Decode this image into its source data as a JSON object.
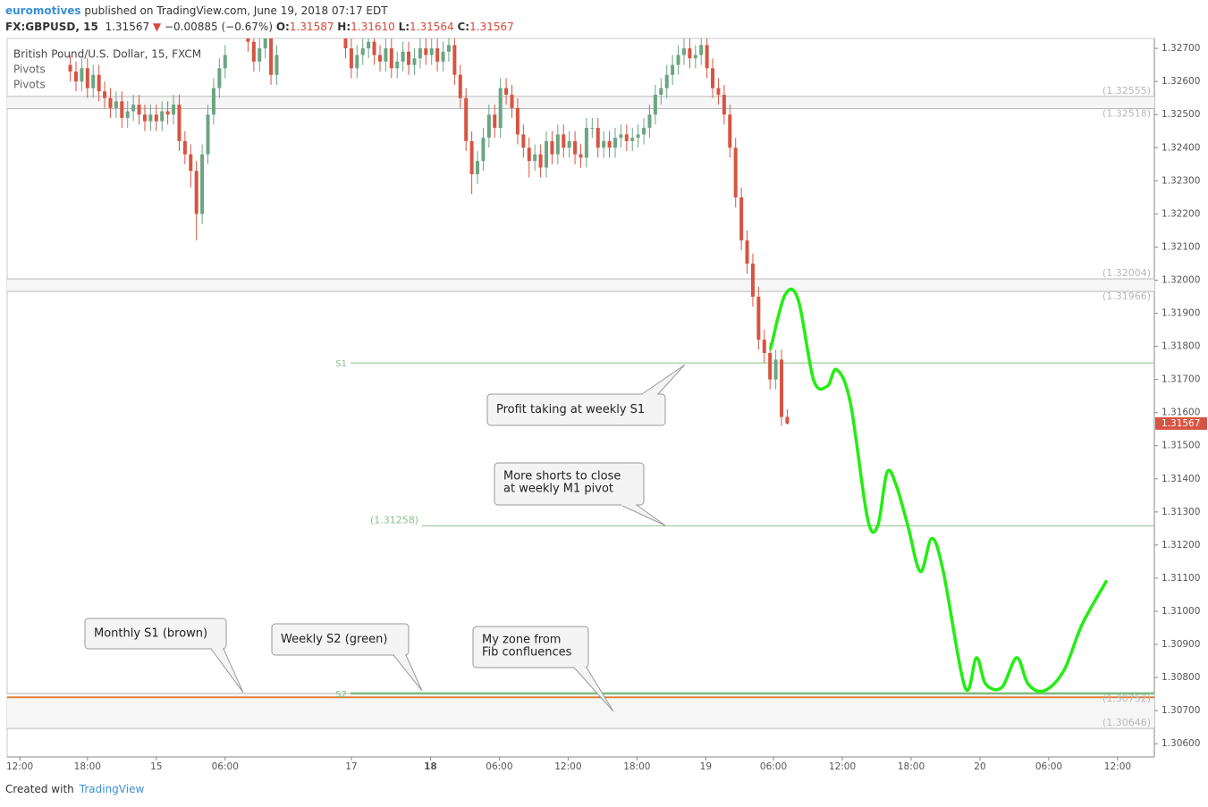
{
  "header": {
    "author": "euromotives",
    "published": "published on TradingView.com, June 19, 2018 07:17 EDT",
    "symbol": "FX:GBPUSD, 15",
    "price": "1.31567",
    "change": "−0.00885 (−0.67%)",
    "ohlc": [
      [
        "O:",
        "1.31587"
      ],
      [
        "H:",
        "1.31610"
      ],
      [
        "L:",
        "1.31564"
      ],
      [
        "C:",
        "1.31567"
      ]
    ]
  },
  "chart_data": {
    "type": "candlestick",
    "instrument": "British Pound/U.S. Dollar, 15, FXCM",
    "indicators": [
      "Pivots",
      "Pivots"
    ],
    "xlim": [
      0,
      100
    ],
    "ylim": [
      1.3056,
      1.3273
    ],
    "xticks": [
      {
        "value": 1.1,
        "label": "12:00"
      },
      {
        "value": 7,
        "label": "18:00"
      },
      {
        "value": 13,
        "label": "15"
      },
      {
        "value": 19,
        "label": "06:00"
      },
      {
        "value": 30,
        "label": "17"
      },
      {
        "value": 36.9,
        "label": "18"
      },
      {
        "value": 42.9,
        "label": "06:00"
      },
      {
        "value": 48.9,
        "label": "12:00"
      },
      {
        "value": 54.9,
        "label": "18:00"
      },
      {
        "value": 60.9,
        "label": "19"
      },
      {
        "value": 66.8,
        "label": "06:00"
      },
      {
        "value": 72.8,
        "label": "12:00"
      },
      {
        "value": 78.8,
        "label": "18:00"
      },
      {
        "value": 84.8,
        "label": "20"
      },
      {
        "value": 90.8,
        "label": "06:00"
      },
      {
        "value": 96.8,
        "label": "12:00"
      }
    ],
    "yticks": [
      {
        "value": 1.327,
        "label": "1.32700"
      },
      {
        "value": 1.326,
        "label": "1.32600"
      },
      {
        "value": 1.325,
        "label": "1.32500"
      },
      {
        "value": 1.324,
        "label": "1.32400"
      },
      {
        "value": 1.323,
        "label": "1.32300"
      },
      {
        "value": 1.322,
        "label": "1.32200"
      },
      {
        "value": 1.321,
        "label": "1.32100"
      },
      {
        "value": 1.32,
        "label": "1.32000"
      },
      {
        "value": 1.319,
        "label": "1.31900"
      },
      {
        "value": 1.318,
        "label": "1.31800"
      },
      {
        "value": 1.317,
        "label": "1.31700"
      },
      {
        "value": 1.316,
        "label": "1.31600"
      },
      {
        "value": 1.315,
        "label": "1.31500"
      },
      {
        "value": 1.314,
        "label": "1.31400"
      },
      {
        "value": 1.313,
        "label": "1.31300"
      },
      {
        "value": 1.312,
        "label": "1.31200"
      },
      {
        "value": 1.311,
        "label": "1.31100"
      },
      {
        "value": 1.31,
        "label": "1.31000"
      },
      {
        "value": 1.309,
        "label": "1.30900"
      },
      {
        "value": 1.308,
        "label": "1.30800"
      },
      {
        "value": 1.307,
        "label": "1.30700"
      },
      {
        "value": 1.306,
        "label": "1.30600"
      }
    ],
    "series": [
      {
        "up_color": "#6ba583",
        "down_color": "#d75442",
        "x": [
          5.5,
          6,
          6.5,
          7,
          7.5,
          8,
          8.5,
          9,
          9.5,
          10,
          10.5,
          11,
          11.5,
          12,
          12.5,
          13,
          13.5,
          14,
          14.5,
          15,
          15.5,
          16,
          16.5,
          17,
          17.5,
          18,
          18.5,
          19,
          21,
          21.5,
          22,
          22.5,
          23,
          23.5,
          29.5,
          30,
          30.5,
          31,
          31.5,
          32,
          32.5,
          33,
          33.5,
          34,
          34.5,
          35,
          35.5,
          36,
          36.5,
          37,
          37.5,
          38,
          38.5,
          39,
          39.5,
          40,
          40.5,
          41,
          41.5,
          42,
          42.5,
          43,
          43.5,
          44,
          44.5,
          45,
          45.5,
          46,
          46.5,
          47,
          47.5,
          48,
          48.5,
          49,
          49.5,
          50,
          50.5,
          51,
          51.5,
          52,
          52.5,
          53,
          53.5,
          54,
          54.5,
          55,
          55.5,
          56,
          56.5,
          57,
          57.5,
          58,
          58.5,
          59,
          59.5,
          60,
          60.5,
          61,
          61.5,
          62,
          62.5,
          63,
          63.5,
          64,
          64.5,
          65,
          65.5,
          66,
          66.5,
          67,
          67.5,
          68
        ],
        "open": [
          1.3265,
          1.3263,
          1.326,
          1.3264,
          1.3258,
          1.3262,
          1.3257,
          1.3255,
          1.3252,
          1.3254,
          1.3249,
          1.3251,
          1.3253,
          1.325,
          1.3248,
          1.325,
          1.3248,
          1.3251,
          1.325,
          1.3253,
          1.3242,
          1.3238,
          1.3233,
          1.322,
          1.3238,
          1.325,
          1.3258,
          1.3264,
          1.3276,
          1.3272,
          1.3266,
          1.327,
          1.3274,
          1.3262,
          1.3274,
          1.327,
          1.3264,
          1.3268,
          1.327,
          1.3272,
          1.3268,
          1.3266,
          1.327,
          1.3264,
          1.3266,
          1.3269,
          1.3265,
          1.3267,
          1.327,
          1.3268,
          1.327,
          1.3266,
          1.3269,
          1.3271,
          1.3262,
          1.3255,
          1.3242,
          1.3232,
          1.3236,
          1.3243,
          1.325,
          1.3246,
          1.3258,
          1.3256,
          1.3252,
          1.3244,
          1.324,
          1.3236,
          1.3238,
          1.3234,
          1.3242,
          1.3238,
          1.3244,
          1.324,
          1.3242,
          1.3238,
          1.3237,
          1.3246,
          1.3246,
          1.324,
          1.3242,
          1.324,
          1.3243,
          1.3244,
          1.3242,
          1.3243,
          1.3244,
          1.3246,
          1.325,
          1.3256,
          1.3258,
          1.3262,
          1.3265,
          1.3268,
          1.327,
          1.3267,
          1.3268,
          1.3271,
          1.3264,
          1.3258,
          1.3256,
          1.325,
          1.324,
          1.3225,
          1.3212,
          1.3205,
          1.3195,
          1.3182,
          1.3178,
          1.317,
          1.3176,
          1.31587
        ],
        "high": [
          1.3268,
          1.3266,
          1.3267,
          1.3267,
          1.3265,
          1.3265,
          1.326,
          1.3258,
          1.3257,
          1.3257,
          1.3254,
          1.3256,
          1.3256,
          1.3253,
          1.3253,
          1.3253,
          1.3254,
          1.3254,
          1.3256,
          1.3256,
          1.3245,
          1.3241,
          1.3236,
          1.3241,
          1.3253,
          1.3261,
          1.3267,
          1.3271,
          1.3279,
          1.3275,
          1.3273,
          1.3277,
          1.3277,
          1.3271,
          1.3277,
          1.3273,
          1.3271,
          1.3273,
          1.3275,
          1.3275,
          1.3271,
          1.3273,
          1.3273,
          1.3269,
          1.3272,
          1.3272,
          1.327,
          1.3273,
          1.3273,
          1.3273,
          1.3273,
          1.3272,
          1.3274,
          1.3274,
          1.3265,
          1.3258,
          1.3245,
          1.3239,
          1.3246,
          1.3253,
          1.3253,
          1.3261,
          1.3261,
          1.3259,
          1.3255,
          1.3247,
          1.3243,
          1.3241,
          1.3241,
          1.3245,
          1.3245,
          1.3247,
          1.3247,
          1.3245,
          1.3245,
          1.3241,
          1.3249,
          1.3249,
          1.3249,
          1.3245,
          1.3245,
          1.3246,
          1.3247,
          1.3247,
          1.3246,
          1.3247,
          1.3249,
          1.3253,
          1.3259,
          1.3261,
          1.3265,
          1.3268,
          1.3271,
          1.3273,
          1.3273,
          1.3271,
          1.3274,
          1.3274,
          1.3267,
          1.3261,
          1.3259,
          1.3253,
          1.3243,
          1.3228,
          1.3215,
          1.3208,
          1.3198,
          1.3185,
          1.3181,
          1.3179,
          1.3179,
          1.3161
        ],
        "low": [
          1.326,
          1.3257,
          1.3257,
          1.3255,
          1.3255,
          1.3254,
          1.3252,
          1.3249,
          1.3249,
          1.3246,
          1.3246,
          1.3248,
          1.3247,
          1.3245,
          1.3245,
          1.3245,
          1.3245,
          1.3247,
          1.3247,
          1.3239,
          1.3235,
          1.3228,
          1.3212,
          1.3217,
          1.3235,
          1.3247,
          1.3255,
          1.3261,
          1.3269,
          1.3263,
          1.3263,
          1.3267,
          1.3259,
          1.3259,
          1.3267,
          1.3261,
          1.3261,
          1.3265,
          1.3267,
          1.3265,
          1.3263,
          1.3263,
          1.3261,
          1.3261,
          1.3263,
          1.3262,
          1.3262,
          1.3264,
          1.3265,
          1.3265,
          1.3263,
          1.3263,
          1.3266,
          1.3259,
          1.3252,
          1.3239,
          1.3226,
          1.3229,
          1.3233,
          1.324,
          1.3243,
          1.3243,
          1.3253,
          1.3249,
          1.3241,
          1.3237,
          1.3231,
          1.3233,
          1.3231,
          1.3231,
          1.3235,
          1.3235,
          1.3237,
          1.3237,
          1.3235,
          1.3234,
          1.3234,
          1.3243,
          1.3237,
          1.3237,
          1.3237,
          1.3237,
          1.324,
          1.3239,
          1.3239,
          1.324,
          1.3241,
          1.3243,
          1.3247,
          1.3253,
          1.3255,
          1.3259,
          1.3262,
          1.3265,
          1.3264,
          1.3264,
          1.3265,
          1.3261,
          1.3255,
          1.3253,
          1.3247,
          1.3237,
          1.3222,
          1.3209,
          1.3202,
          1.3192,
          1.3179,
          1.3175,
          1.3167,
          1.3167,
          1.3156,
          1.31564
        ],
        "close": [
          1.3263,
          1.326,
          1.3264,
          1.3258,
          1.3262,
          1.3257,
          1.3255,
          1.3252,
          1.3254,
          1.3249,
          1.3251,
          1.3253,
          1.325,
          1.3248,
          1.325,
          1.3248,
          1.3251,
          1.325,
          1.3253,
          1.3242,
          1.3238,
          1.3233,
          1.322,
          1.3238,
          1.325,
          1.3258,
          1.3264,
          1.3268,
          1.3272,
          1.3266,
          1.327,
          1.3274,
          1.3262,
          1.3268,
          1.327,
          1.3264,
          1.3268,
          1.327,
          1.3272,
          1.3268,
          1.3266,
          1.327,
          1.3264,
          1.3266,
          1.3269,
          1.3265,
          1.3267,
          1.327,
          1.3268,
          1.327,
          1.3266,
          1.3269,
          1.3271,
          1.3262,
          1.3255,
          1.3242,
          1.3232,
          1.3236,
          1.3243,
          1.325,
          1.3246,
          1.3258,
          1.3256,
          1.3252,
          1.3244,
          1.324,
          1.3236,
          1.3238,
          1.3234,
          1.3242,
          1.3238,
          1.3244,
          1.324,
          1.3242,
          1.3238,
          1.3237,
          1.3246,
          1.3246,
          1.324,
          1.3242,
          1.324,
          1.3243,
          1.3244,
          1.3242,
          1.3243,
          1.3244,
          1.3246,
          1.325,
          1.3256,
          1.3258,
          1.3262,
          1.3265,
          1.3268,
          1.327,
          1.3267,
          1.3268,
          1.3271,
          1.3264,
          1.3258,
          1.3256,
          1.325,
          1.324,
          1.3225,
          1.3212,
          1.3205,
          1.3195,
          1.3182,
          1.3178,
          1.317,
          1.3176,
          1.31587,
          1.31567
        ]
      }
    ],
    "pivots": [
      {
        "value": 1.32555,
        "label": "(1.32555)",
        "color": "#b8b8b8"
      },
      {
        "value": 1.32518,
        "label": "(1.32518)",
        "color": "#b8b8b8"
      },
      {
        "value": 1.32004,
        "label": "(1.32004)",
        "color": "#b8b8b8"
      },
      {
        "value": 1.31966,
        "label": "(1.31966)",
        "color": "#b8b8b8"
      },
      {
        "value": 1.31258,
        "label": "(1.31258)",
        "color": "#8cc08c"
      },
      {
        "value": 1.30752,
        "label": "(1.30752)",
        "color": "#b8b8b8"
      },
      {
        "value": 1.30646,
        "label": "(1.30646)",
        "color": "#b8b8b8"
      }
    ],
    "named_lines": [
      {
        "name": "S1",
        "value": 1.3175,
        "color": "#8cc08c"
      },
      {
        "name": "S2",
        "value": 1.30752,
        "color": "#7dbd7d"
      }
    ],
    "monthly_s1": {
      "value": 1.3074,
      "color": "#e0813d"
    },
    "projection": {
      "color": "#22ee11",
      "x": [
        66.55,
        67.8,
        68.96,
        70.3,
        71.5,
        72.3,
        73.5,
        75.0,
        75.9,
        76.7,
        77.5,
        78.5,
        79.6,
        80.6,
        81.6,
        83.5,
        84.5,
        85.3,
        86.7,
        88.0,
        89.0,
        90.4,
        92.1,
        93.7,
        95.8
      ],
      "y": [
        1.31793,
        1.31955,
        1.3194,
        1.31698,
        1.3168,
        1.3173,
        1.3163,
        1.3128,
        1.3126,
        1.3142,
        1.3138,
        1.3126,
        1.3112,
        1.3122,
        1.3112,
        1.3077,
        1.3086,
        1.3078,
        1.3077,
        1.3086,
        1.3078,
        1.3076,
        1.3082,
        1.3096,
        1.3109
      ]
    },
    "annotations": [
      [
        "Profit taking at weekly S1"
      ],
      [
        "More shorts to close",
        "at weekly M1 pivot"
      ],
      [
        "Monthly S1 (brown)"
      ],
      [
        "Weekly S2 (green)"
      ],
      [
        "My zone from",
        "Fib confluences"
      ]
    ]
  },
  "footer": {
    "created": "Created with",
    "brand": "TradingView"
  }
}
